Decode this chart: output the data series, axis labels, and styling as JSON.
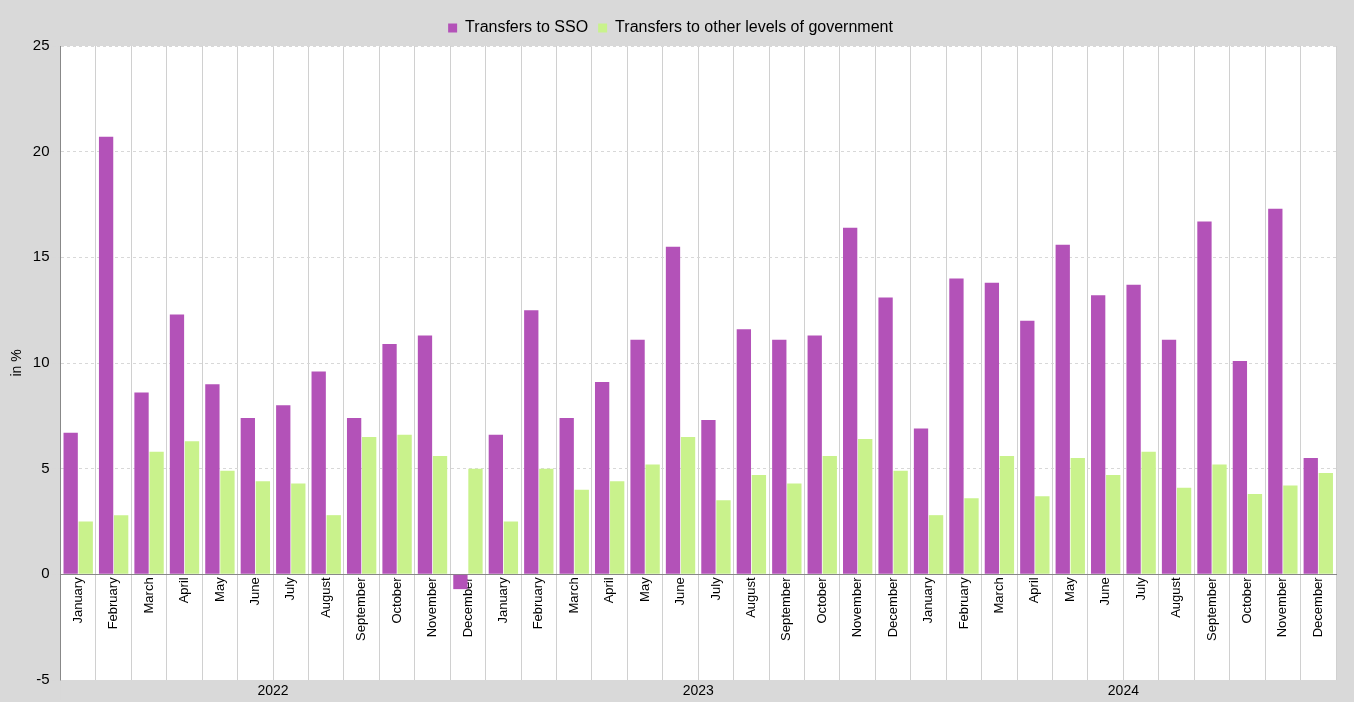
{
  "chart_data": {
    "type": "bar",
    "ylabel": "in %",
    "categories": [
      "January",
      "February",
      "March",
      "April",
      "May",
      "June",
      "July",
      "August",
      "September",
      "October",
      "November",
      "December",
      "January",
      "February",
      "March",
      "April",
      "May",
      "June",
      "July",
      "August",
      "September",
      "October",
      "November",
      "December",
      "January",
      "February",
      "March",
      "April",
      "May",
      "June",
      "July",
      "August",
      "September",
      "October",
      "November",
      "December"
    ],
    "series": [
      {
        "name": "Transfers to SSO",
        "color": "#b352b8",
        "values": [
          6.7,
          20.7,
          8.6,
          12.3,
          9.0,
          7.4,
          8.0,
          9.6,
          7.4,
          10.9,
          11.3,
          -0.7,
          6.6,
          12.5,
          7.4,
          9.1,
          11.1,
          15.5,
          7.3,
          11.6,
          11.1,
          11.3,
          16.4,
          13.1,
          6.9,
          14.0,
          13.8,
          12.0,
          15.6,
          13.2,
          13.7,
          11.1,
          16.7,
          10.1,
          17.3,
          5.5
        ]
      },
      {
        "name": "Transfers to other levels of government",
        "color": "#c9f28c",
        "values": [
          2.5,
          2.8,
          5.8,
          6.3,
          4.9,
          4.4,
          4.3,
          2.8,
          6.5,
          6.6,
          5.6,
          5.0,
          2.5,
          5.0,
          4.0,
          4.4,
          5.2,
          6.5,
          3.5,
          4.7,
          4.3,
          5.6,
          6.4,
          4.9,
          2.8,
          3.6,
          5.6,
          3.7,
          5.5,
          4.7,
          5.8,
          4.1,
          5.2,
          3.8,
          4.2,
          4.8
        ]
      }
    ],
    "ylim": [
      -5,
      25
    ],
    "yticks": [
      -5,
      0,
      5,
      10,
      15,
      20,
      25
    ],
    "grid": true,
    "legend": "top",
    "annotations": [
      "2022",
      "2023",
      "2024"
    ]
  }
}
